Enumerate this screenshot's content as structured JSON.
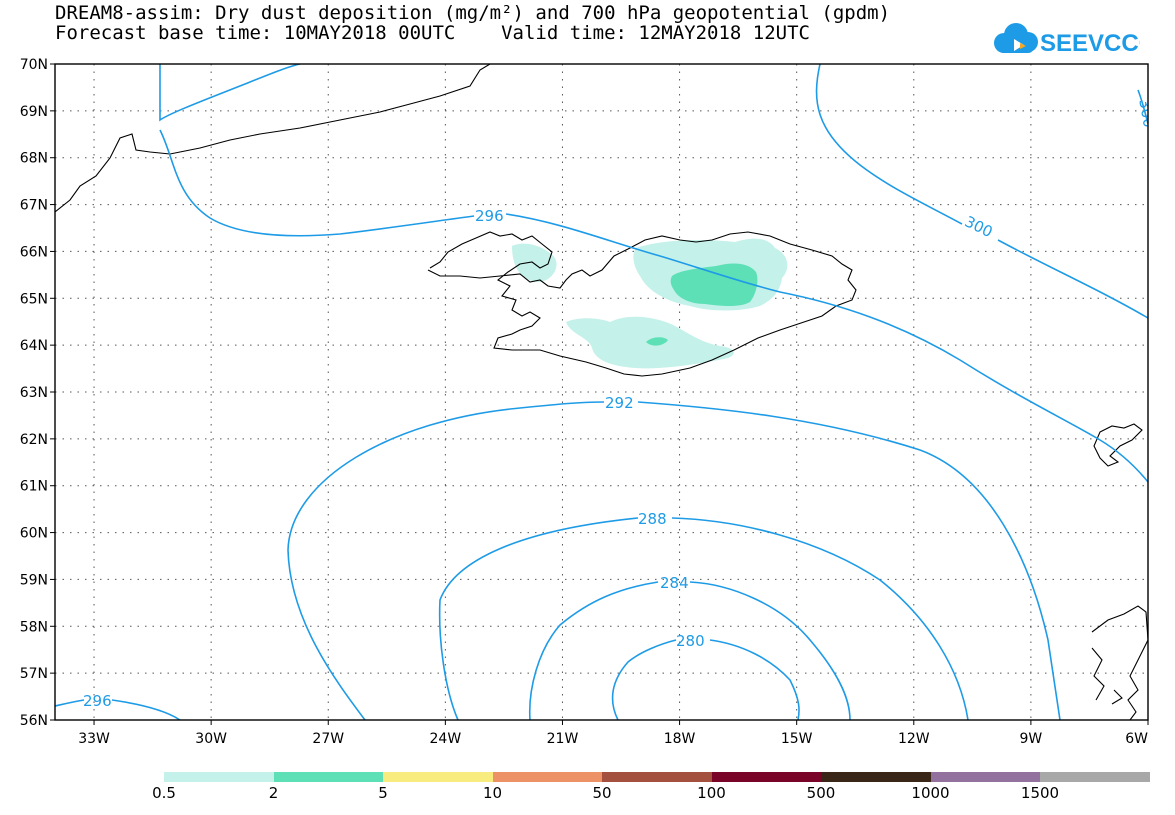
{
  "title_line1": "DREAM8-assim: Dry dust deposition (mg/m²) and 700 hPa geopotential (gpdm)",
  "title_line2": "Forecast base time: 10MAY2018 00UTC    Valid time: 12MAY2018 12UTC",
  "logo_text": "SEEVCCC",
  "map": {
    "lon_range": [
      -34,
      -6
    ],
    "lat_range": [
      56,
      70
    ],
    "lon_ticks": [
      "33W",
      "30W",
      "27W",
      "24W",
      "21W",
      "18W",
      "15W",
      "12W",
      "9W",
      "6W"
    ],
    "lat_ticks": [
      "56N",
      "57N",
      "58N",
      "59N",
      "60N",
      "61N",
      "62N",
      "63N",
      "64N",
      "65N",
      "66N",
      "67N",
      "68N",
      "69N",
      "70N"
    ],
    "contour_color": "#1e9be6",
    "contour_labels": [
      "296",
      "300",
      "296",
      "292",
      "288",
      "284",
      "280",
      "296",
      "300"
    ]
  },
  "colorbar": {
    "colors": [
      "#c4f1ea",
      "#5ee0b6",
      "#f8ec7e",
      "#ec9266",
      "#a4503f",
      "#7a0428",
      "#3a2617",
      "#92719e",
      "#a8a8a8"
    ],
    "labels": [
      "0.5",
      "2",
      "5",
      "10",
      "50",
      "100",
      "500",
      "1000",
      "1500"
    ]
  }
}
